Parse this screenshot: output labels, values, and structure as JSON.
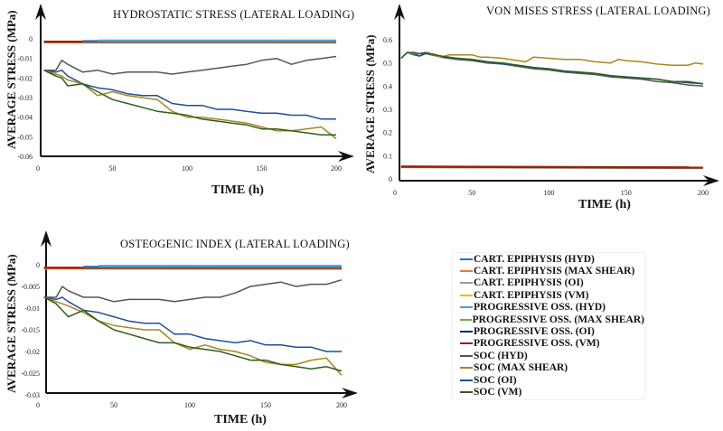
{
  "chart_data": [
    {
      "type": "line",
      "title": "HYDROSTATIC STRESS (LATERAL LOADING)",
      "xlabel": "TIME (h)",
      "ylabel": "AVERAGE STRESS (MPa)",
      "xlim": [
        0,
        205
      ],
      "ylim": [
        -0.06,
        0
      ],
      "xticks": [
        0,
        50,
        100,
        150,
        200
      ],
      "yticks": [
        0,
        -0.01,
        -0.02,
        -0.03,
        -0.04,
        -0.05,
        -0.06
      ],
      "ytick_labels": [
        "0",
        "-0.01",
        "-0.02",
        "-0.03",
        "-0.04",
        "-0.05",
        "-0.06"
      ],
      "grid": false,
      "series": [
        {
          "name": "CART. EPIPHYSIS (MAX SHEAR)",
          "x": [
            4,
            200
          ],
          "y": [
            -0.0016,
            -0.0016
          ]
        },
        {
          "name": "CART. EPIPHYSIS (VM)",
          "x": [
            4,
            200
          ],
          "y": [
            -0.0018,
            -0.0019
          ]
        },
        {
          "name": "PROGRESSIVE OSS. (VM)",
          "x": [
            4,
            200
          ],
          "y": [
            -0.0015,
            -0.0015
          ]
        },
        {
          "name": "CART. EPIPHYSIS (HYD)",
          "x": [
            30,
            200
          ],
          "y": [
            -0.0012,
            -0.0012
          ]
        },
        {
          "name": "PROGRESSIVE OSS. (HYD)",
          "x": [
            40,
            200
          ],
          "y": [
            -0.0009,
            -0.0009
          ]
        },
        {
          "name": "SOC (HYD)",
          "x": [
            4,
            12,
            16,
            20,
            30,
            40,
            50,
            60,
            70,
            80,
            90,
            100,
            110,
            120,
            130,
            140,
            150,
            160,
            170,
            180,
            190,
            200
          ],
          "y": [
            -0.016,
            -0.016,
            -0.011,
            -0.013,
            -0.017,
            -0.016,
            -0.018,
            -0.017,
            -0.017,
            -0.017,
            -0.018,
            -0.017,
            -0.016,
            -0.015,
            -0.014,
            -0.013,
            -0.011,
            -0.01,
            -0.013,
            -0.011,
            -0.01,
            -0.009
          ]
        },
        {
          "name": "SOC (OI)",
          "x": [
            4,
            12,
            16,
            20,
            30,
            40,
            50,
            60,
            70,
            80,
            90,
            100,
            110,
            120,
            130,
            140,
            150,
            160,
            170,
            180,
            190,
            200
          ],
          "y": [
            -0.016,
            -0.017,
            -0.016,
            -0.019,
            -0.023,
            -0.025,
            -0.026,
            -0.028,
            -0.029,
            -0.029,
            -0.033,
            -0.034,
            -0.034,
            -0.036,
            -0.036,
            -0.037,
            -0.038,
            -0.038,
            -0.039,
            -0.039,
            -0.041,
            -0.041
          ]
        },
        {
          "name": "SOC (MAX SHEAR)",
          "x": [
            4,
            12,
            16,
            20,
            30,
            40,
            50,
            60,
            70,
            80,
            90,
            100,
            110,
            120,
            130,
            140,
            150,
            160,
            170,
            180,
            190,
            200
          ],
          "y": [
            -0.016,
            -0.018,
            -0.019,
            -0.021,
            -0.023,
            -0.029,
            -0.027,
            -0.029,
            -0.03,
            -0.031,
            -0.037,
            -0.04,
            -0.04,
            -0.041,
            -0.042,
            -0.043,
            -0.045,
            -0.047,
            -0.047,
            -0.046,
            -0.045,
            -0.051
          ]
        },
        {
          "name": "SOC (VM)",
          "x": [
            4,
            12,
            16,
            20,
            30,
            40,
            50,
            60,
            70,
            80,
            90,
            100,
            110,
            120,
            130,
            140,
            150,
            160,
            170,
            180,
            190,
            200
          ],
          "y": [
            -0.016,
            -0.019,
            -0.02,
            -0.024,
            -0.023,
            -0.027,
            -0.031,
            -0.033,
            -0.035,
            -0.037,
            -0.038,
            -0.039,
            -0.041,
            -0.042,
            -0.043,
            -0.044,
            -0.046,
            -0.046,
            -0.047,
            -0.048,
            -0.049,
            -0.049
          ]
        }
      ]
    },
    {
      "type": "line",
      "title": "VON MISES STRESS (LATERAL LOADING)",
      "xlabel": "TIME (h)",
      "ylabel": "AVERAGE STRESS (MPa)",
      "xlim": [
        0,
        205
      ],
      "ylim": [
        0,
        0.6
      ],
      "xticks": [
        0,
        50,
        100,
        150,
        200
      ],
      "yticks": [
        0,
        0.1,
        0.2,
        0.3,
        0.4,
        0.5,
        0.6
      ],
      "ytick_labels": [
        "0",
        "0.1",
        "0.2",
        "0.3",
        "0.4",
        "0.5",
        "0.6"
      ],
      "grid": false,
      "series": [
        {
          "name": "CART. EPIPHYSIS (VM)",
          "x": [
            4,
            200
          ],
          "y": [
            0.052,
            0.048
          ]
        },
        {
          "name": "PROGRESSIVE OSS. (MAX SHEAR)",
          "x": [
            4,
            200
          ],
          "y": [
            0.051,
            0.047
          ]
        },
        {
          "name": "PROGRESSIVE OSS. (VM)",
          "x": [
            4,
            200
          ],
          "y": [
            0.053,
            0.049
          ]
        },
        {
          "name": "SOC (HYD)",
          "x": [
            4,
            8,
            12,
            16,
            20,
            30,
            40,
            50,
            60,
            70,
            80,
            90,
            100,
            110,
            120,
            130,
            140,
            150,
            160,
            170,
            180,
            190,
            200
          ],
          "y": [
            0.52,
            0.545,
            0.535,
            0.53,
            0.54,
            0.525,
            0.515,
            0.51,
            0.5,
            0.495,
            0.485,
            0.475,
            0.47,
            0.46,
            0.455,
            0.45,
            0.44,
            0.435,
            0.43,
            0.42,
            0.415,
            0.405,
            0.4
          ]
        },
        {
          "name": "SOC (OI)",
          "x": [
            4,
            8,
            12,
            16,
            20,
            30,
            40,
            50,
            60,
            70,
            80,
            90,
            100,
            110,
            120,
            130,
            140,
            150,
            160,
            170,
            180,
            190,
            200
          ],
          "y": [
            0.52,
            0.545,
            0.54,
            0.53,
            0.545,
            0.525,
            0.52,
            0.515,
            0.505,
            0.495,
            0.49,
            0.48,
            0.475,
            0.465,
            0.46,
            0.455,
            0.445,
            0.44,
            0.435,
            0.43,
            0.42,
            0.42,
            0.41
          ]
        },
        {
          "name": "SOC (MAX SHEAR)",
          "x": [
            4,
            8,
            12,
            16,
            20,
            30,
            35,
            40,
            50,
            55,
            60,
            70,
            80,
            85,
            90,
            100,
            110,
            120,
            130,
            140,
            145,
            150,
            160,
            170,
            180,
            190,
            195,
            200
          ],
          "y": [
            0.52,
            0.545,
            0.54,
            0.54,
            0.545,
            0.525,
            0.535,
            0.535,
            0.535,
            0.525,
            0.525,
            0.52,
            0.51,
            0.505,
            0.525,
            0.52,
            0.515,
            0.515,
            0.505,
            0.5,
            0.515,
            0.51,
            0.505,
            0.495,
            0.49,
            0.49,
            0.5,
            0.495
          ]
        },
        {
          "name": "SOC (VM)",
          "x": [
            4,
            8,
            12,
            16,
            20,
            30,
            40,
            50,
            60,
            70,
            80,
            90,
            100,
            110,
            120,
            130,
            140,
            150,
            160,
            170,
            180,
            190,
            200
          ],
          "y": [
            0.52,
            0.545,
            0.545,
            0.54,
            0.545,
            0.53,
            0.52,
            0.515,
            0.505,
            0.5,
            0.49,
            0.48,
            0.475,
            0.465,
            0.46,
            0.455,
            0.445,
            0.44,
            0.435,
            0.43,
            0.42,
            0.415,
            0.41
          ]
        }
      ]
    },
    {
      "type": "line",
      "title": "OSTEOGENIC INDEX (LATERAL LOADING)",
      "xlabel": "TIME (h)",
      "ylabel": "AVERAGE STRESS (MPa)",
      "xlim": [
        0,
        205
      ],
      "ylim": [
        -0.03,
        0
      ],
      "xticks": [
        0,
        50,
        100,
        150,
        200
      ],
      "yticks": [
        0,
        -0.005,
        -0.01,
        -0.015,
        -0.02,
        -0.025,
        -0.03
      ],
      "ytick_labels": [
        "0",
        "-0.005",
        "-0.01",
        "-0.015",
        "-0.02",
        "-0.025",
        "-0.03"
      ],
      "grid": false,
      "series": [
        {
          "name": "CART. EPIPHYSIS (MAX SHEAR)",
          "x": [
            4,
            200
          ],
          "y": [
            -0.0008,
            -0.0008
          ]
        },
        {
          "name": "CART. EPIPHYSIS (VM)",
          "x": [
            4,
            200
          ],
          "y": [
            -0.0009,
            -0.001
          ]
        },
        {
          "name": "PROGRESSIVE OSS. (VM)",
          "x": [
            4,
            200
          ],
          "y": [
            -0.0007,
            -0.0007
          ]
        },
        {
          "name": "CART. EPIPHYSIS (HYD)",
          "x": [
            30,
            200
          ],
          "y": [
            -0.0005,
            -0.0005
          ]
        },
        {
          "name": "PROGRESSIVE OSS. (HYD)",
          "x": [
            40,
            200
          ],
          "y": [
            -0.0003,
            -0.0003
          ]
        },
        {
          "name": "SOC (HYD)",
          "x": [
            4,
            12,
            16,
            20,
            30,
            40,
            50,
            60,
            70,
            80,
            90,
            100,
            110,
            120,
            130,
            140,
            150,
            160,
            170,
            180,
            190,
            200
          ],
          "y": [
            -0.0075,
            -0.0075,
            -0.005,
            -0.006,
            -0.0075,
            -0.0075,
            -0.0085,
            -0.008,
            -0.008,
            -0.008,
            -0.0085,
            -0.008,
            -0.0075,
            -0.0075,
            -0.0065,
            -0.005,
            -0.0045,
            -0.004,
            -0.005,
            -0.0045,
            -0.0045,
            -0.0035
          ]
        },
        {
          "name": "SOC (OI)",
          "x": [
            4,
            12,
            16,
            20,
            30,
            40,
            50,
            60,
            70,
            80,
            90,
            100,
            110,
            120,
            130,
            140,
            150,
            160,
            170,
            180,
            190,
            200
          ],
          "y": [
            -0.0075,
            -0.008,
            -0.0075,
            -0.0085,
            -0.0105,
            -0.011,
            -0.012,
            -0.013,
            -0.0135,
            -0.0135,
            -0.016,
            -0.016,
            -0.017,
            -0.0175,
            -0.018,
            -0.0175,
            -0.0185,
            -0.0185,
            -0.019,
            -0.019,
            -0.02,
            -0.02
          ]
        },
        {
          "name": "SOC (MAX SHEAR)",
          "x": [
            4,
            12,
            16,
            20,
            30,
            40,
            50,
            60,
            70,
            80,
            90,
            100,
            110,
            120,
            130,
            140,
            150,
            160,
            170,
            180,
            190,
            200
          ],
          "y": [
            -0.0075,
            -0.0085,
            -0.009,
            -0.0095,
            -0.011,
            -0.013,
            -0.014,
            -0.0145,
            -0.015,
            -0.015,
            -0.018,
            -0.0195,
            -0.0185,
            -0.0195,
            -0.02,
            -0.021,
            -0.0225,
            -0.023,
            -0.023,
            -0.022,
            -0.0215,
            -0.0255
          ]
        },
        {
          "name": "SOC (VM)",
          "x": [
            4,
            12,
            16,
            20,
            30,
            40,
            50,
            60,
            70,
            80,
            90,
            100,
            110,
            120,
            130,
            140,
            150,
            160,
            170,
            180,
            190,
            200
          ],
          "y": [
            -0.0075,
            -0.009,
            -0.0105,
            -0.012,
            -0.0105,
            -0.013,
            -0.015,
            -0.016,
            -0.017,
            -0.018,
            -0.018,
            -0.019,
            -0.0195,
            -0.02,
            -0.021,
            -0.022,
            -0.022,
            -0.023,
            -0.0235,
            -0.024,
            -0.0235,
            -0.0245
          ]
        }
      ]
    }
  ],
  "legend": {
    "placement": "right",
    "items": [
      {
        "name": "CART. EPIPHYSIS (HYD)",
        "color": "#2e6fc0"
      },
      {
        "name": "CART. EPIPHYSIS (MAX SHEAR)",
        "color": "#e87a30"
      },
      {
        "name": "CART. EPIPHYSIS (OI)",
        "color": "#9a9a9a"
      },
      {
        "name": "CART. EPIPHYSIS (VM)",
        "color": "#f5b800"
      },
      {
        "name": "PROGRESSIVE OSS. (HYD)",
        "color": "#4a9fd8"
      },
      {
        "name": "PROGRESSIVE OSS. (MAX SHEAR)",
        "color": "#6ab04c"
      },
      {
        "name": "PROGRESSIVE OSS. (OI)",
        "color": "#1a2a6c"
      },
      {
        "name": "PROGRESSIVE OSS. (VM)",
        "color": "#9b1c1c"
      },
      {
        "name": "SOC (HYD)",
        "color": "#555555"
      },
      {
        "name": "SOC (MAX SHEAR)",
        "color": "#a8861a"
      },
      {
        "name": "SOC (OI)",
        "color": "#1f4e96"
      },
      {
        "name": "SOC (VM)",
        "color": "#2d5e1e"
      }
    ]
  }
}
